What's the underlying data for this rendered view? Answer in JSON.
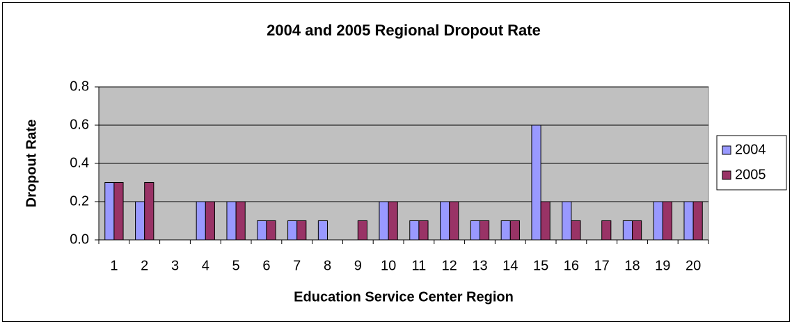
{
  "chart_data": {
    "type": "bar",
    "title": "2004 and 2005 Regional Dropout Rate",
    "x_label": "Education Service Center Region",
    "y_label": "Dropout Rate",
    "categories": [
      "1",
      "2",
      "3",
      "4",
      "5",
      "6",
      "7",
      "8",
      "9",
      "10",
      "11",
      "12",
      "13",
      "14",
      "15",
      "16",
      "17",
      "18",
      "19",
      "20"
    ],
    "series": [
      {
        "name": "2004",
        "color": "#9999ff",
        "values": [
          0.3,
          0.2,
          0,
          0.2,
          0.2,
          0.1,
          0.1,
          0.1,
          0,
          0.2,
          0.1,
          0.2,
          0.1,
          0.1,
          0.6,
          0.2,
          0,
          0.1,
          0.2,
          0.2
        ]
      },
      {
        "name": "2005",
        "color": "#993366",
        "values": [
          0.3,
          0.3,
          0,
          0.2,
          0.2,
          0.1,
          0.1,
          0,
          0.1,
          0.2,
          0.1,
          0.2,
          0.1,
          0.1,
          0.2,
          0.1,
          0.1,
          0.1,
          0.2,
          0.2
        ]
      }
    ],
    "ylim": [
      0,
      0.8
    ],
    "yticks": [
      {
        "value": 0,
        "label": "0.0"
      },
      0.2,
      0.4,
      0.6,
      0.8
    ],
    "grid": true,
    "legend": "right",
    "plot_background": "#c0c0c0"
  }
}
